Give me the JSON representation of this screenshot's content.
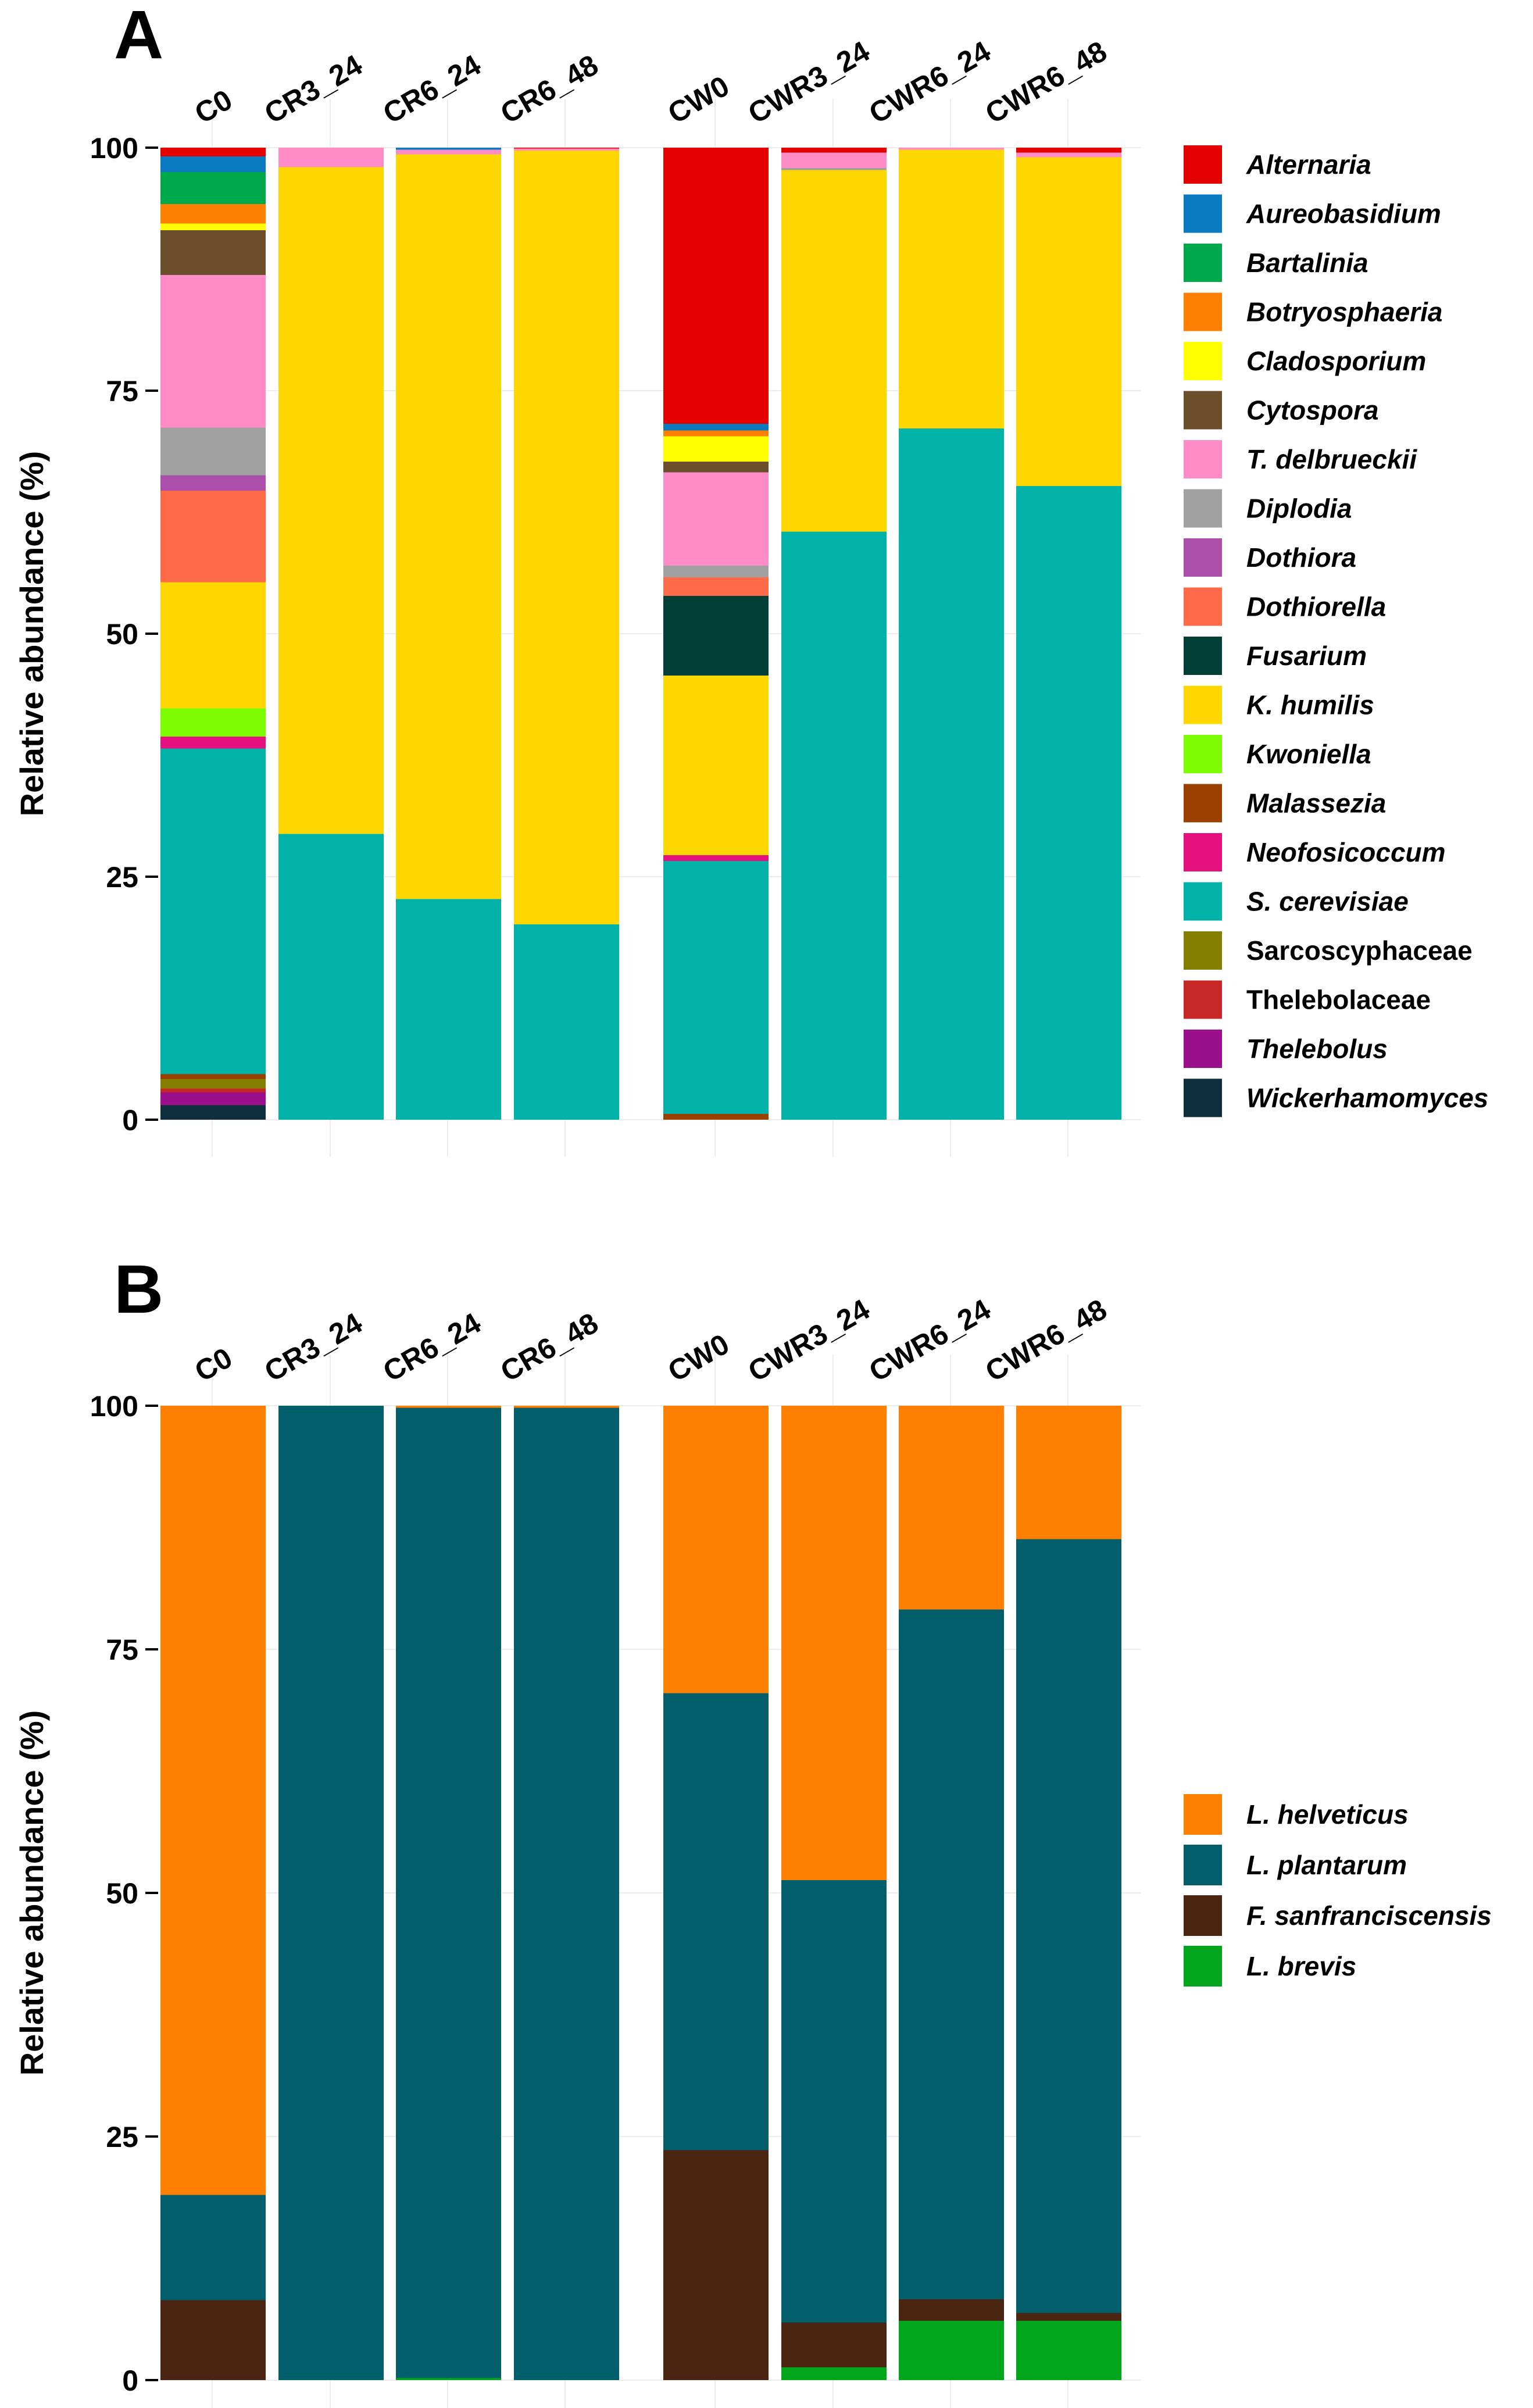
{
  "chart_data": [
    {
      "type": "bar",
      "stacked": true,
      "panel": "A",
      "title": "",
      "xlabel": "",
      "ylabel": "Relative abundance (%)",
      "ylim": [
        0,
        100
      ],
      "yticks": [
        0,
        25,
        50,
        75,
        100
      ],
      "grid": true,
      "legend_position": "right",
      "categories": [
        "C0",
        "CR3_24",
        "CR6_24",
        "CR6_48",
        "CW0",
        "CWR3_24",
        "CWR6_24",
        "CWR6_48"
      ],
      "groups": [
        [
          "C0",
          "CR3_24",
          "CR6_24",
          "CR6_48"
        ],
        [
          "CW0",
          "CWR3_24",
          "CWR6_24",
          "CWR6_48"
        ]
      ],
      "series": [
        {
          "name": "Wickerhamomyces",
          "italic": true,
          "color": "#0E2F3C",
          "values": [
            1.5,
            0,
            0,
            0,
            0,
            0,
            0,
            0
          ]
        },
        {
          "name": "Thelebolus",
          "italic": true,
          "color": "#9A0F8C",
          "values": [
            1.3,
            0,
            0,
            0,
            0,
            0,
            0,
            0
          ]
        },
        {
          "name": "Thelebolaceae",
          "italic": false,
          "color": "#C62828",
          "values": [
            0.4,
            0,
            0,
            0,
            0,
            0,
            0,
            0
          ]
        },
        {
          "name": "Sarcoscyphaceae",
          "italic": false,
          "color": "#857F00",
          "values": [
            1.0,
            0,
            0,
            0,
            0,
            0,
            0,
            0
          ]
        },
        {
          "name": "Malassezia",
          "italic": true,
          "color": "#9A4100",
          "values": [
            0.5,
            0,
            0,
            0,
            0.6,
            0,
            0,
            0
          ]
        },
        {
          "name": "S. cerevisiae",
          "italic": true,
          "color": "#00B2A8",
          "values": [
            33.5,
            29.4,
            22.7,
            20.1,
            26.0,
            60.5,
            71.1,
            65.2
          ]
        },
        {
          "name": "Neofosicoccum",
          "italic": true,
          "color": "#E5117F",
          "values": [
            1.2,
            0,
            0,
            0,
            0.6,
            0,
            0,
            0
          ]
        },
        {
          "name": "Kwoniella",
          "italic": true,
          "color": "#7CFC00",
          "values": [
            2.9,
            0,
            0,
            0,
            0,
            0,
            0,
            0
          ]
        },
        {
          "name": "K. humilis",
          "italic": true,
          "color": "#FFD700",
          "values": [
            13.0,
            68.6,
            76.6,
            79.6,
            18.5,
            37.2,
            28.7,
            33.8
          ]
        },
        {
          "name": "Fusarium",
          "italic": true,
          "color": "#023F36",
          "values": [
            0,
            0,
            0,
            0,
            8.2,
            0,
            0,
            0
          ]
        },
        {
          "name": "Dothiorella",
          "italic": true,
          "color": "#FF6A49",
          "values": [
            9.4,
            0,
            0,
            0,
            1.9,
            0,
            0,
            0
          ]
        },
        {
          "name": "Dothiora",
          "italic": true,
          "color": "#AB4FAA",
          "values": [
            1.6,
            0,
            0,
            0,
            0,
            0,
            0,
            0
          ]
        },
        {
          "name": "Diplodia",
          "italic": true,
          "color": "#A0A0A0",
          "values": [
            4.9,
            0,
            0,
            0,
            1.2,
            0.2,
            0,
            0
          ]
        },
        {
          "name": "T. delbrueckii",
          "italic": true,
          "color": "#FF8CC6",
          "values": [
            15.7,
            2.0,
            0.5,
            0.2,
            9.6,
            1.6,
            0.2,
            0.5
          ]
        },
        {
          "name": "Cytospora",
          "italic": true,
          "color": "#6B4F2D",
          "values": [
            4.6,
            0,
            0,
            0,
            1.1,
            0,
            0,
            0
          ]
        },
        {
          "name": "Cladosporium",
          "italic": true,
          "color": "#FFFF00",
          "values": [
            0.7,
            0,
            0,
            0,
            2.6,
            0,
            0,
            0
          ]
        },
        {
          "name": "Botryosphaeria",
          "italic": true,
          "color": "#FF7F00",
          "values": [
            2.0,
            0,
            0,
            0,
            0.6,
            0,
            0,
            0
          ]
        },
        {
          "name": "Bartalinia",
          "italic": true,
          "color": "#00A84C",
          "values": [
            3.3,
            0,
            0,
            0,
            0,
            0,
            0,
            0
          ]
        },
        {
          "name": "Aureobasidium",
          "italic": true,
          "color": "#0A7BC0",
          "values": [
            1.6,
            0,
            0.2,
            0,
            0.7,
            0,
            0,
            0
          ]
        },
        {
          "name": "Alternaria",
          "italic": true,
          "color": "#E50000",
          "values": [
            0.9,
            0,
            0,
            0.1,
            28.4,
            0.5,
            0,
            0.5
          ]
        }
      ],
      "legend_order": [
        "Alternaria",
        "Aureobasidium",
        "Bartalinia",
        "Botryosphaeria",
        "Cladosporium",
        "Cytospora",
        "T. delbrueckii",
        "Diplodia",
        "Dothiora",
        "Dothiorella",
        "Fusarium",
        "K. humilis",
        "Kwoniella",
        "Malassezia",
        "Neofosicoccum",
        "S. cerevisiae",
        "Sarcoscyphaceae",
        "Thelebolaceae",
        "Thelebolus",
        "Wickerhamomyces"
      ]
    },
    {
      "type": "bar",
      "stacked": true,
      "panel": "B",
      "title": "",
      "xlabel": "",
      "ylabel": "Relative abundance (%)",
      "ylim": [
        0,
        100
      ],
      "yticks": [
        0,
        25,
        50,
        75,
        100
      ],
      "grid": true,
      "legend_position": "right",
      "categories": [
        "C0",
        "CR3_24",
        "CR6_24",
        "CR6_48",
        "CW0",
        "CWR3_24",
        "CWR6_24",
        "CWR6_48"
      ],
      "groups": [
        [
          "C0",
          "CR3_24",
          "CR6_24",
          "CR6_48"
        ],
        [
          "CW0",
          "CWR3_24",
          "CWR6_24",
          "CWR6_48"
        ]
      ],
      "series": [
        {
          "name": "L. brevis",
          "italic": true,
          "color": "#00A51C",
          "values": [
            0,
            0,
            0.2,
            0,
            0,
            1.3,
            6.1,
            6.1
          ]
        },
        {
          "name": "F. sanfranciscensis",
          "italic": true,
          "color": "#4A2612",
          "values": [
            8.2,
            0,
            0,
            0,
            23.6,
            4.6,
            2.2,
            0.8
          ]
        },
        {
          "name": "L. plantarum",
          "italic": true,
          "color": "#005F6B",
          "values": [
            10.8,
            100,
            99.6,
            99.8,
            46.9,
            45.4,
            70.8,
            79.4
          ]
        },
        {
          "name": "L. helveticus",
          "italic": true,
          "color": "#FF7F00",
          "values": [
            81.0,
            0,
            0.2,
            0.2,
            29.5,
            48.7,
            20.9,
            13.7
          ]
        }
      ],
      "legend_order": [
        "L. helveticus",
        "L. plantarum",
        "F. sanfranciscensis",
        "L. brevis"
      ]
    }
  ]
}
